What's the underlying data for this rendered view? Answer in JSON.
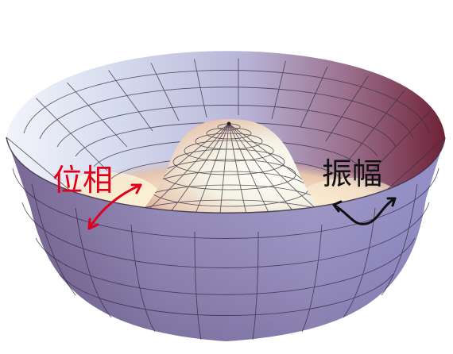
{
  "figure": {
    "labels": {
      "phase": "位相",
      "amplitude": "振幅"
    },
    "colors": {
      "phase_annotation": "#e0001b",
      "amplitude_annotation": "#111111",
      "surface_outer_left": "#e7ecf7",
      "surface_outer_right": "#7e2b3b",
      "surface_wall": "#8d7aa5",
      "surface_hump_light": "#fffdf0",
      "surface_hump_dark": "#b85a5c",
      "mesh_line": "#3a3040"
    }
  }
}
